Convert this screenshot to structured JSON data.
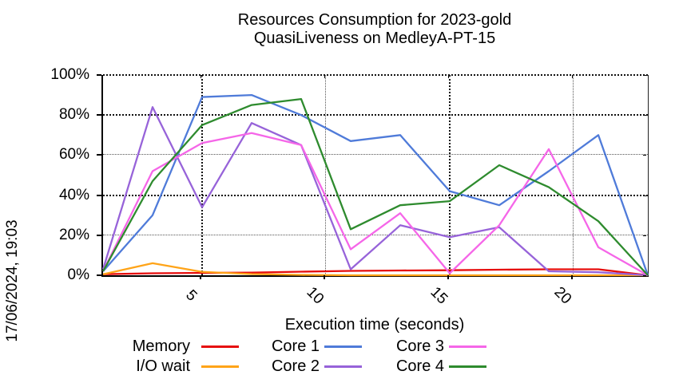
{
  "title": {
    "line1": "Resources Consumption for 2023-gold",
    "line2": "QuasiLiveness on MedleyA-PT-15"
  },
  "watermark": "17/06/2024, 19:03",
  "chart_data": {
    "type": "line",
    "title": "Resources Consumption for 2023-gold QuasiLiveness on MedleyA-PT-15",
    "xlabel": "Execution time (seconds)",
    "ylabel": "",
    "xlim": [
      1,
      23
    ],
    "ylim": [
      0,
      100
    ],
    "grid": true,
    "legend_position": "bottom",
    "x_ticks": [
      {
        "v": 5,
        "label": "5"
      },
      {
        "v": 10,
        "label": "10"
      },
      {
        "v": 15,
        "label": "15"
      },
      {
        "v": 20,
        "label": "20"
      }
    ],
    "y_ticks": [
      {
        "v": 0,
        "label": "0%"
      },
      {
        "v": 20,
        "label": "20%"
      },
      {
        "v": 40,
        "label": "40%"
      },
      {
        "v": 60,
        "label": "60%"
      },
      {
        "v": 80,
        "label": "80%"
      },
      {
        "v": 100,
        "label": "100%"
      }
    ],
    "x": [
      1,
      3,
      5,
      7,
      9,
      11,
      13,
      15,
      17,
      19,
      21,
      23
    ],
    "series": [
      {
        "name": "Memory",
        "color": "#e60d0d",
        "values": [
          0.5,
          1,
          1.2,
          1.3,
          1.8,
          2.2,
          2.4,
          2.5,
          2.8,
          3,
          3,
          0
        ]
      },
      {
        "name": "I/O wait",
        "color": "#ffa418",
        "values": [
          0.5,
          6,
          1.7,
          0.6,
          0.2,
          0,
          0,
          0,
          0,
          0,
          0,
          0
        ]
      },
      {
        "name": "Core 1",
        "color": "#4f7bd9",
        "values": [
          2,
          30,
          89,
          90,
          80,
          67,
          70,
          42,
          35,
          52,
          70,
          0
        ]
      },
      {
        "name": "Core 2",
        "color": "#9763d9",
        "values": [
          3,
          84,
          34,
          76,
          65,
          3,
          25,
          19,
          24,
          2,
          1.5,
          0
        ]
      },
      {
        "name": "Core 3",
        "color": "#f566e8",
        "values": [
          2,
          52,
          66,
          71,
          65,
          13,
          31,
          1,
          25,
          63,
          14,
          0
        ]
      },
      {
        "name": "Core 4",
        "color": "#2e8b2e",
        "values": [
          2,
          47,
          75,
          85,
          88,
          23,
          35,
          37,
          55,
          44,
          27,
          0
        ]
      }
    ]
  }
}
